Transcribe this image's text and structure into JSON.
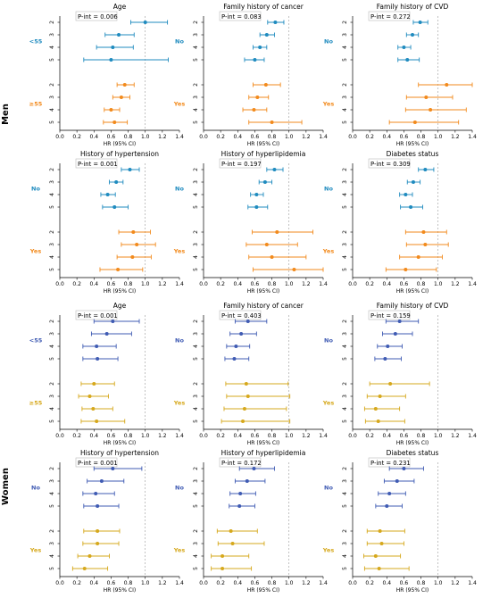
{
  "figure": {
    "axis_label": "HR (95% CI)",
    "xlim": [
      0.0,
      1.4
    ],
    "xticks": [
      "0.0",
      "0.2",
      "0.4",
      "0.6",
      "0.8",
      "1.0",
      "1.2",
      "1.4"
    ],
    "reference_line": 1.0,
    "row_ticks": [
      "2",
      "3",
      "4",
      "5"
    ]
  },
  "sections": [
    {
      "label": "Men",
      "color_top": "#1f8bbf",
      "color_bottom": "#f28a1c"
    },
    {
      "label": "Women",
      "color_top": "#3f5bb3",
      "color_bottom": "#d6a81c"
    }
  ],
  "chart_data": [
    {
      "type": "forest",
      "section": "Men",
      "title": "Age",
      "pvalue": "P-int = 0.006",
      "xlabel": "HR (95% CI)",
      "xlim": [
        0,
        1.4
      ],
      "groups": [
        {
          "label": "<55",
          "rows": [
            {
              "row": "2",
              "hr": 1.0,
              "lo": 0.83,
              "hi": 1.26
            },
            {
              "row": "3",
              "hr": 0.69,
              "lo": 0.53,
              "hi": 0.87
            },
            {
              "row": "4",
              "hr": 0.62,
              "lo": 0.43,
              "hi": 0.86
            },
            {
              "row": "5",
              "hr": 0.6,
              "lo": 0.28,
              "hi": 1.27
            }
          ]
        },
        {
          "label": "≥55",
          "rows": [
            {
              "row": "2",
              "hr": 0.76,
              "lo": 0.67,
              "hi": 0.87
            },
            {
              "row": "3",
              "hr": 0.72,
              "lo": 0.62,
              "hi": 0.82
            },
            {
              "row": "4",
              "hr": 0.6,
              "lo": 0.52,
              "hi": 0.7
            },
            {
              "row": "5",
              "hr": 0.64,
              "lo": 0.51,
              "hi": 0.79
            }
          ]
        }
      ]
    },
    {
      "type": "forest",
      "section": "Men",
      "title": "Family history of cancer",
      "pvalue": "P-int = 0.083",
      "xlabel": "HR (95% CI)",
      "xlim": [
        0,
        1.4
      ],
      "groups": [
        {
          "label": "No",
          "rows": [
            {
              "row": "2",
              "hr": 0.84,
              "lo": 0.75,
              "hi": 0.94
            },
            {
              "row": "3",
              "hr": 0.74,
              "lo": 0.66,
              "hi": 0.83
            },
            {
              "row": "4",
              "hr": 0.66,
              "lo": 0.58,
              "hi": 0.74
            },
            {
              "row": "5",
              "hr": 0.6,
              "lo": 0.48,
              "hi": 0.71
            }
          ]
        },
        {
          "label": "Yes",
          "rows": [
            {
              "row": "2",
              "hr": 0.73,
              "lo": 0.58,
              "hi": 0.9
            },
            {
              "row": "3",
              "hr": 0.63,
              "lo": 0.53,
              "hi": 0.76
            },
            {
              "row": "4",
              "hr": 0.59,
              "lo": 0.46,
              "hi": 0.74
            },
            {
              "row": "5",
              "hr": 0.8,
              "lo": 0.53,
              "hi": 1.15
            }
          ]
        }
      ]
    },
    {
      "type": "forest",
      "section": "Men",
      "title": "Family history of CVD",
      "pvalue": "P-int = 0.272",
      "xlabel": "HR (95% CI)",
      "xlim": [
        0,
        1.4
      ],
      "groups": [
        {
          "label": "No",
          "rows": [
            {
              "row": "2",
              "hr": 0.79,
              "lo": 0.71,
              "hi": 0.88
            },
            {
              "row": "3",
              "hr": 0.7,
              "lo": 0.63,
              "hi": 0.77
            },
            {
              "row": "4",
              "hr": 0.6,
              "lo": 0.53,
              "hi": 0.68
            },
            {
              "row": "5",
              "hr": 0.64,
              "lo": 0.53,
              "hi": 0.78
            }
          ]
        },
        {
          "label": "Yes",
          "rows": [
            {
              "row": "2",
              "hr": 1.1,
              "lo": 0.77,
              "hi": 1.4
            },
            {
              "row": "3",
              "hr": 0.86,
              "lo": 0.63,
              "hi": 1.17
            },
            {
              "row": "4",
              "hr": 0.91,
              "lo": 0.62,
              "hi": 1.33
            },
            {
              "row": "5",
              "hr": 0.73,
              "lo": 0.43,
              "hi": 1.24
            }
          ]
        }
      ]
    },
    {
      "type": "forest",
      "section": "Men",
      "title": "History of hypertension",
      "pvalue": "P-int = 0.001",
      "xlabel": "HR (95% CI)",
      "xlim": [
        0,
        1.4
      ],
      "groups": [
        {
          "label": "No",
          "rows": [
            {
              "row": "2",
              "hr": 0.82,
              "lo": 0.72,
              "hi": 0.93
            },
            {
              "row": "3",
              "hr": 0.66,
              "lo": 0.58,
              "hi": 0.74
            },
            {
              "row": "4",
              "hr": 0.56,
              "lo": 0.48,
              "hi": 0.65
            },
            {
              "row": "5",
              "hr": 0.64,
              "lo": 0.5,
              "hi": 0.8
            }
          ]
        },
        {
          "label": "Yes",
          "rows": [
            {
              "row": "2",
              "hr": 0.86,
              "lo": 0.69,
              "hi": 1.06
            },
            {
              "row": "3",
              "hr": 0.9,
              "lo": 0.72,
              "hi": 1.12
            },
            {
              "row": "4",
              "hr": 0.85,
              "lo": 0.67,
              "hi": 1.07
            },
            {
              "row": "5",
              "hr": 0.68,
              "lo": 0.47,
              "hi": 0.97
            }
          ]
        }
      ]
    },
    {
      "type": "forest",
      "section": "Men",
      "title": "History of hyperlipidemia",
      "pvalue": "P-int = 0.197",
      "xlabel": "HR (95% CI)",
      "xlim": [
        0,
        1.4
      ],
      "groups": [
        {
          "label": "No",
          "rows": [
            {
              "row": "2",
              "hr": 0.83,
              "lo": 0.74,
              "hi": 0.93
            },
            {
              "row": "3",
              "hr": 0.72,
              "lo": 0.65,
              "hi": 0.8
            },
            {
              "row": "4",
              "hr": 0.62,
              "lo": 0.55,
              "hi": 0.7
            },
            {
              "row": "5",
              "hr": 0.62,
              "lo": 0.52,
              "hi": 0.75
            }
          ]
        },
        {
          "label": "Yes",
          "rows": [
            {
              "row": "2",
              "hr": 0.86,
              "lo": 0.57,
              "hi": 1.28
            },
            {
              "row": "3",
              "hr": 0.74,
              "lo": 0.5,
              "hi": 1.1
            },
            {
              "row": "4",
              "hr": 0.8,
              "lo": 0.53,
              "hi": 1.2
            },
            {
              "row": "5",
              "hr": 1.06,
              "lo": 0.58,
              "hi": 1.4
            }
          ]
        }
      ]
    },
    {
      "type": "forest",
      "section": "Men",
      "title": "Diabetes status",
      "pvalue": "P-int = 0.309",
      "xlabel": "HR (95% CI)",
      "xlim": [
        0,
        1.4
      ],
      "groups": [
        {
          "label": "No",
          "rows": [
            {
              "row": "2",
              "hr": 0.85,
              "lo": 0.77,
              "hi": 0.95
            },
            {
              "row": "3",
              "hr": 0.71,
              "lo": 0.64,
              "hi": 0.79
            },
            {
              "row": "4",
              "hr": 0.62,
              "lo": 0.55,
              "hi": 0.7
            },
            {
              "row": "5",
              "hr": 0.68,
              "lo": 0.56,
              "hi": 0.82
            }
          ]
        },
        {
          "label": "Yes",
          "rows": [
            {
              "row": "2",
              "hr": 0.83,
              "lo": 0.62,
              "hi": 1.1
            },
            {
              "row": "3",
              "hr": 0.85,
              "lo": 0.63,
              "hi": 1.12
            },
            {
              "row": "4",
              "hr": 0.77,
              "lo": 0.55,
              "hi": 1.05
            },
            {
              "row": "5",
              "hr": 0.62,
              "lo": 0.39,
              "hi": 0.98
            }
          ]
        }
      ]
    },
    {
      "type": "forest",
      "section": "Women",
      "title": "Age",
      "pvalue": "P-int = 0.001",
      "xlabel": "HR (95% CI)",
      "xlim": [
        0,
        1.4
      ],
      "groups": [
        {
          "label": "<55",
          "rows": [
            {
              "row": "2",
              "hr": 0.62,
              "lo": 0.4,
              "hi": 0.93
            },
            {
              "row": "3",
              "hr": 0.55,
              "lo": 0.37,
              "hi": 0.84
            },
            {
              "row": "4",
              "hr": 0.43,
              "lo": 0.27,
              "hi": 0.66
            },
            {
              "row": "5",
              "hr": 0.44,
              "lo": 0.27,
              "hi": 0.68
            }
          ]
        },
        {
          "label": "≥55",
          "rows": [
            {
              "row": "2",
              "hr": 0.4,
              "lo": 0.25,
              "hi": 0.64
            },
            {
              "row": "3",
              "hr": 0.35,
              "lo": 0.22,
              "hi": 0.57
            },
            {
              "row": "4",
              "hr": 0.39,
              "lo": 0.26,
              "hi": 0.62
            },
            {
              "row": "5",
              "hr": 0.43,
              "lo": 0.25,
              "hi": 0.76
            }
          ]
        }
      ]
    },
    {
      "type": "forest",
      "section": "Women",
      "title": "Family history of cancer",
      "pvalue": "P-int = 0.403",
      "xlabel": "HR (95% CI)",
      "xlim": [
        0,
        1.4
      ],
      "groups": [
        {
          "label": "No",
          "rows": [
            {
              "row": "2",
              "hr": 0.52,
              "lo": 0.37,
              "hi": 0.74
            },
            {
              "row": "3",
              "hr": 0.44,
              "lo": 0.31,
              "hi": 0.62
            },
            {
              "row": "4",
              "hr": 0.38,
              "lo": 0.27,
              "hi": 0.54
            },
            {
              "row": "5",
              "hr": 0.36,
              "lo": 0.25,
              "hi": 0.53
            }
          ]
        },
        {
          "label": "Yes",
          "rows": [
            {
              "row": "2",
              "hr": 0.5,
              "lo": 0.26,
              "hi": 0.99
            },
            {
              "row": "3",
              "hr": 0.52,
              "lo": 0.27,
              "hi": 1.01
            },
            {
              "row": "4",
              "hr": 0.48,
              "lo": 0.24,
              "hi": 0.97
            },
            {
              "row": "5",
              "hr": 0.46,
              "lo": 0.21,
              "hi": 1.01
            }
          ]
        }
      ]
    },
    {
      "type": "forest",
      "section": "Women",
      "title": "Family history of CVD",
      "pvalue": "P-int = 0.159",
      "xlabel": "HR (95% CI)",
      "xlim": [
        0,
        1.4
      ],
      "groups": [
        {
          "label": "No",
          "rows": [
            {
              "row": "2",
              "hr": 0.55,
              "lo": 0.39,
              "hi": 0.77
            },
            {
              "row": "3",
              "hr": 0.5,
              "lo": 0.35,
              "hi": 0.7
            },
            {
              "row": "4",
              "hr": 0.41,
              "lo": 0.29,
              "hi": 0.58
            },
            {
              "row": "5",
              "hr": 0.38,
              "lo": 0.26,
              "hi": 0.57
            }
          ]
        },
        {
          "label": "Yes",
          "rows": [
            {
              "row": "2",
              "hr": 0.44,
              "lo": 0.2,
              "hi": 0.9
            },
            {
              "row": "3",
              "hr": 0.32,
              "lo": 0.17,
              "hi": 0.62
            },
            {
              "row": "4",
              "hr": 0.27,
              "lo": 0.14,
              "hi": 0.55
            },
            {
              "row": "5",
              "hr": 0.3,
              "lo": 0.15,
              "hi": 0.61
            }
          ]
        }
      ]
    },
    {
      "type": "forest",
      "section": "Women",
      "title": "History of hypertension",
      "pvalue": "P-int = 0.001",
      "xlabel": "HR (95% CI)",
      "xlim": [
        0,
        1.4
      ],
      "groups": [
        {
          "label": "No",
          "rows": [
            {
              "row": "2",
              "hr": 0.62,
              "lo": 0.4,
              "hi": 0.96
            },
            {
              "row": "3",
              "hr": 0.49,
              "lo": 0.32,
              "hi": 0.75
            },
            {
              "row": "4",
              "hr": 0.42,
              "lo": 0.27,
              "hi": 0.64
            },
            {
              "row": "5",
              "hr": 0.44,
              "lo": 0.28,
              "hi": 0.69
            }
          ]
        },
        {
          "label": "Yes",
          "rows": [
            {
              "row": "2",
              "hr": 0.44,
              "lo": 0.28,
              "hi": 0.7
            },
            {
              "row": "3",
              "hr": 0.44,
              "lo": 0.27,
              "hi": 0.69
            },
            {
              "row": "4",
              "hr": 0.35,
              "lo": 0.21,
              "hi": 0.58
            },
            {
              "row": "5",
              "hr": 0.29,
              "lo": 0.15,
              "hi": 0.56
            }
          ]
        }
      ]
    },
    {
      "type": "forest",
      "section": "Women",
      "title": "History of hyperlipidemia",
      "pvalue": "P-int = 0.172",
      "xlabel": "HR (95% CI)",
      "xlim": [
        0,
        1.4
      ],
      "groups": [
        {
          "label": "No",
          "rows": [
            {
              "row": "2",
              "hr": 0.59,
              "lo": 0.42,
              "hi": 0.83
            },
            {
              "row": "3",
              "hr": 0.51,
              "lo": 0.37,
              "hi": 0.72
            },
            {
              "row": "4",
              "hr": 0.43,
              "lo": 0.31,
              "hi": 0.61
            },
            {
              "row": "5",
              "hr": 0.42,
              "lo": 0.3,
              "hi": 0.6
            }
          ]
        },
        {
          "label": "Yes",
          "rows": [
            {
              "row": "2",
              "hr": 0.32,
              "lo": 0.16,
              "hi": 0.63
            },
            {
              "row": "3",
              "hr": 0.34,
              "lo": 0.17,
              "hi": 0.71
            },
            {
              "row": "4",
              "hr": 0.22,
              "lo": 0.09,
              "hi": 0.53
            },
            {
              "row": "5",
              "hr": 0.22,
              "lo": 0.09,
              "hi": 0.56
            }
          ]
        }
      ]
    },
    {
      "type": "forest",
      "section": "Women",
      "title": "Diabetes status",
      "pvalue": "P-int = 0.231",
      "xlabel": "HR (95% CI)",
      "xlim": [
        0,
        1.4
      ],
      "groups": [
        {
          "label": "No",
          "rows": [
            {
              "row": "2",
              "hr": 0.6,
              "lo": 0.43,
              "hi": 0.83
            },
            {
              "row": "3",
              "hr": 0.52,
              "lo": 0.37,
              "hi": 0.72
            },
            {
              "row": "4",
              "hr": 0.43,
              "lo": 0.3,
              "hi": 0.62
            },
            {
              "row": "5",
              "hr": 0.4,
              "lo": 0.27,
              "hi": 0.58
            }
          ]
        },
        {
          "label": "Yes",
          "rows": [
            {
              "row": "2",
              "hr": 0.32,
              "lo": 0.17,
              "hi": 0.61
            },
            {
              "row": "3",
              "hr": 0.34,
              "lo": 0.17,
              "hi": 0.6
            },
            {
              "row": "4",
              "hr": 0.27,
              "lo": 0.13,
              "hi": 0.56
            },
            {
              "row": "5",
              "hr": 0.31,
              "lo": 0.14,
              "hi": 0.66
            }
          ]
        }
      ]
    }
  ]
}
